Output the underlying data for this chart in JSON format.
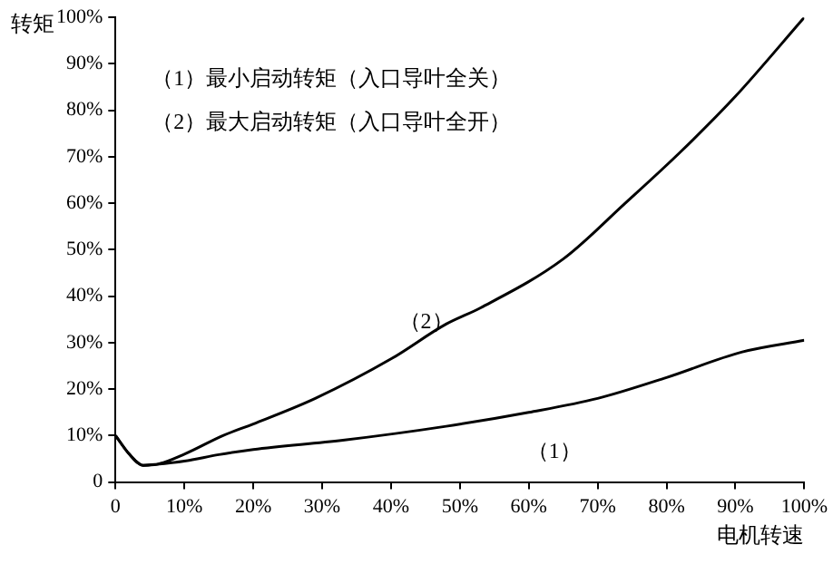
{
  "chart_data": {
    "type": "line",
    "xlabel": "电机转速",
    "ylabel": "转矩",
    "xlim": [
      0,
      100
    ],
    "ylim": [
      0,
      100
    ],
    "xticks": [
      0,
      {
        "value": 10,
        "label": "10%"
      },
      {
        "value": 20,
        "label": "20%"
      },
      {
        "value": 30,
        "label": "30%"
      },
      {
        "value": 40,
        "label": "40%"
      },
      {
        "value": 50,
        "label": "50%"
      },
      {
        "value": 60,
        "label": "60%"
      },
      {
        "value": 70,
        "label": "70%"
      },
      {
        "value": 80,
        "label": "80%"
      },
      {
        "value": 90,
        "label": "90%"
      },
      {
        "value": 100,
        "label": "100%"
      }
    ],
    "yticks": [
      0,
      {
        "value": 10,
        "label": "10%"
      },
      {
        "value": 20,
        "label": "20%"
      },
      {
        "value": 30,
        "label": "30%"
      },
      {
        "value": 40,
        "label": "40%"
      },
      {
        "value": 50,
        "label": "50%"
      },
      {
        "value": 60,
        "label": "60%"
      },
      {
        "value": 70,
        "label": "70%"
      },
      {
        "value": 80,
        "label": "80%"
      },
      {
        "value": 90,
        "label": "90%"
      },
      {
        "value": 100,
        "label": "100%"
      }
    ],
    "series": [
      {
        "name": "（1）",
        "color": "#000000",
        "x": [
          0,
          2,
          4,
          6,
          10,
          15,
          20,
          33,
          48,
          60,
          70,
          80,
          91,
          100
        ],
        "values": [
          10,
          6,
          3.6,
          3.8,
          4.5,
          5.9,
          7,
          9,
          12,
          15,
          18,
          22.5,
          28,
          30.5
        ]
      },
      {
        "name": "（2）",
        "color": "#000000",
        "x": [
          0,
          2,
          4,
          6,
          10,
          15.6,
          20,
          29,
          40,
          48,
          53,
          65,
          74,
          82,
          90,
          100
        ],
        "values": [
          10,
          6,
          3.6,
          3.8,
          6,
          10,
          12.5,
          18,
          26.5,
          34,
          37.5,
          48,
          60,
          71,
          83,
          100
        ]
      }
    ],
    "annotations": [
      "（1）最小启动转矩（入口导叶全关）",
      "（2）最大启动转矩（入口导叶全开）"
    ],
    "grid": false,
    "legend": false,
    "marker": "none",
    "line_style": "solid"
  }
}
